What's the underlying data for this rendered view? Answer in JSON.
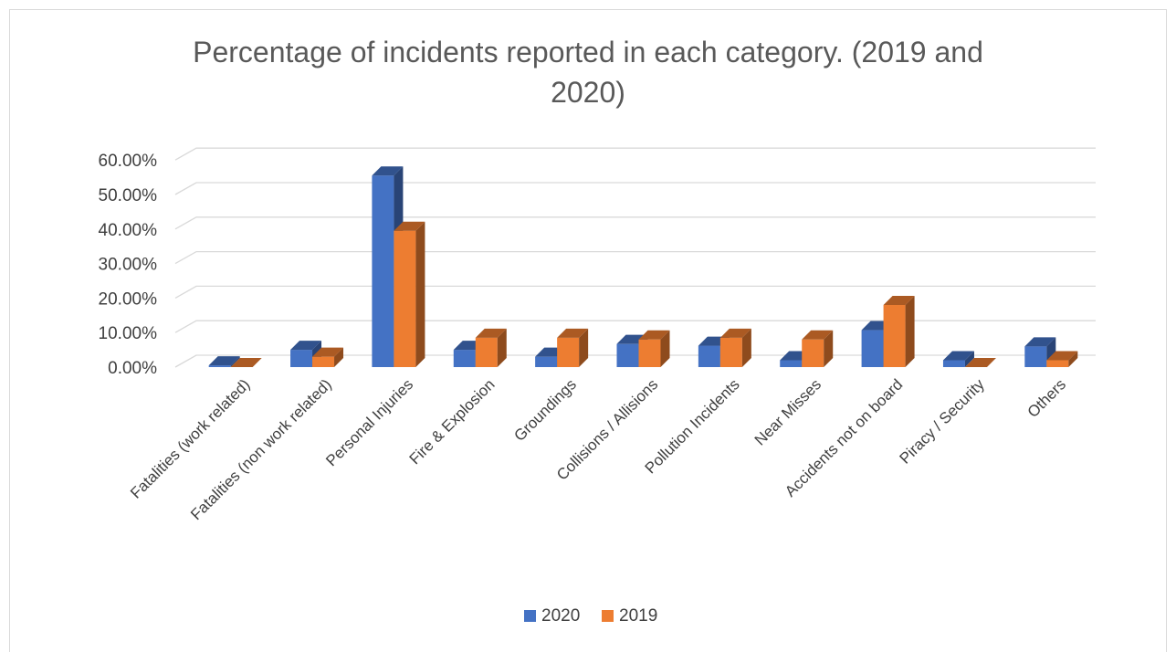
{
  "chart_data": {
    "type": "bar",
    "title_line1": "Percentage of incidents reported in each category. (2019 and",
    "title_line2": "2020)",
    "categories": [
      "Fatalities (work related)",
      "Fatalities (non work related)",
      "Personal Injuries",
      "Fire & Explosion",
      "Groundings",
      "Collisions / Allisions",
      "Pollution Incidents",
      "Near Misses",
      "Accidents not on board",
      "Piracy / Security",
      "Others"
    ],
    "series": [
      {
        "name": "2020",
        "values": [
          0.5,
          5.0,
          55.5,
          5.0,
          3.0,
          6.7,
          6.2,
          2.0,
          10.7,
          2.0,
          6.0
        ],
        "color": "#4472c4"
      },
      {
        "name": "2019",
        "values": [
          0.0,
          3.0,
          39.5,
          8.5,
          8.5,
          8.0,
          8.5,
          8.0,
          18.0,
          0.0,
          2.0
        ],
        "color": "#ed7d31"
      }
    ],
    "y_ticks": [
      "0.00%",
      "10.00%",
      "20.00%",
      "30.00%",
      "40.00%",
      "50.00%",
      "60.00%"
    ],
    "ylim": [
      0,
      60
    ],
    "grid": true,
    "legend_position": "bottom"
  }
}
